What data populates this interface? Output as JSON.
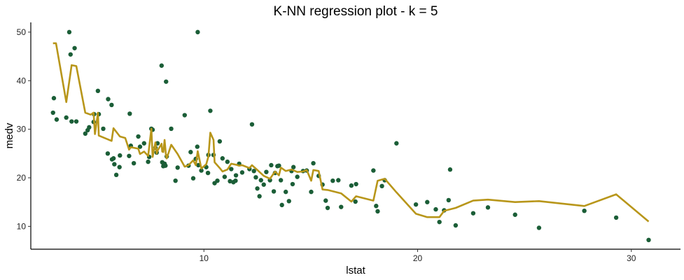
{
  "chart_data": {
    "type": "scatter",
    "title": "K-NN regression plot - k = 5",
    "xlabel": "lstat",
    "ylabel": "medv",
    "xlim": [
      1.9,
      32.3
    ],
    "ylim": [
      5.3,
      52.0
    ],
    "x_ticks": [
      10,
      20,
      30
    ],
    "y_ticks": [
      10,
      20,
      30,
      40,
      50
    ],
    "grid": false,
    "legend": "none",
    "colors": {
      "points": "#1b5e37",
      "line": "#b8961a",
      "axis": "#000000"
    },
    "series": [
      {
        "type": "scatter",
        "points": [
          [
            2.94,
            33.4
          ],
          [
            2.98,
            36.4
          ],
          [
            3.11,
            32.0
          ],
          [
            3.56,
            32.4
          ],
          [
            3.7,
            50.0
          ],
          [
            3.76,
            45.4
          ],
          [
            3.81,
            31.6
          ],
          [
            3.95,
            46.7
          ],
          [
            4.03,
            31.6
          ],
          [
            4.45,
            29.1
          ],
          [
            4.56,
            29.8
          ],
          [
            4.63,
            30.4
          ],
          [
            4.84,
            31.5
          ],
          [
            4.86,
            33.1
          ],
          [
            5.04,
            37.9
          ],
          [
            5.08,
            33.1
          ],
          [
            5.29,
            30.1
          ],
          [
            5.5,
            25.0
          ],
          [
            5.52,
            36.2
          ],
          [
            5.68,
            35.0
          ],
          [
            5.7,
            23.8
          ],
          [
            5.77,
            24.0
          ],
          [
            5.81,
            22.8
          ],
          [
            5.9,
            20.6
          ],
          [
            6.05,
            22.2
          ],
          [
            6.07,
            24.6
          ],
          [
            6.5,
            24.5
          ],
          [
            6.53,
            33.2
          ],
          [
            6.58,
            26.6
          ],
          [
            6.72,
            23.0
          ],
          [
            6.93,
            28.5
          ],
          [
            7.01,
            26.4
          ],
          [
            7.2,
            27.1
          ],
          [
            7.39,
            23.3
          ],
          [
            7.44,
            24.3
          ],
          [
            7.54,
            30.1
          ],
          [
            7.6,
            29.9
          ],
          [
            7.73,
            26.2
          ],
          [
            7.79,
            25.2
          ],
          [
            7.83,
            27.1
          ],
          [
            8.02,
            43.1
          ],
          [
            8.05,
            23.2
          ],
          [
            8.1,
            22.4
          ],
          [
            8.16,
            22.9
          ],
          [
            8.2,
            22.5
          ],
          [
            8.23,
            39.8
          ],
          [
            8.26,
            24.4
          ],
          [
            8.47,
            30.1
          ],
          [
            8.67,
            19.4
          ],
          [
            8.77,
            22.1
          ],
          [
            9.1,
            32.9
          ],
          [
            9.28,
            22.5
          ],
          [
            9.38,
            25.3
          ],
          [
            9.5,
            19.9
          ],
          [
            9.62,
            23.9
          ],
          [
            9.69,
            26.4
          ],
          [
            9.71,
            50.0
          ],
          [
            9.74,
            22.6
          ],
          [
            9.88,
            21.5
          ],
          [
            10.11,
            22.2
          ],
          [
            10.19,
            21.0
          ],
          [
            10.21,
            24.7
          ],
          [
            10.3,
            33.8
          ],
          [
            10.45,
            24.7
          ],
          [
            10.5,
            18.9
          ],
          [
            10.63,
            19.4
          ],
          [
            10.74,
            27.5
          ],
          [
            10.87,
            24.0
          ],
          [
            10.97,
            20.2
          ],
          [
            11.1,
            23.3
          ],
          [
            11.22,
            19.3
          ],
          [
            11.28,
            21.8
          ],
          [
            11.38,
            19.1
          ],
          [
            11.48,
            19.4
          ],
          [
            11.5,
            20.5
          ],
          [
            11.65,
            22.9
          ],
          [
            11.79,
            21.1
          ],
          [
            12.13,
            21.8
          ],
          [
            12.25,
            31.0
          ],
          [
            12.34,
            21.4
          ],
          [
            12.43,
            20.1
          ],
          [
            12.5,
            17.8
          ],
          [
            12.6,
            16.2
          ],
          [
            12.67,
            19.5
          ],
          [
            12.8,
            18.6
          ],
          [
            12.92,
            21.2
          ],
          [
            13.09,
            19.5
          ],
          [
            13.15,
            22.6
          ],
          [
            13.27,
            17.2
          ],
          [
            13.33,
            21.0
          ],
          [
            13.44,
            22.4
          ],
          [
            13.51,
            22.5
          ],
          [
            13.6,
            19.5
          ],
          [
            13.65,
            14.4
          ],
          [
            13.83,
            17.1
          ],
          [
            13.98,
            15.2
          ],
          [
            14.1,
            21.4
          ],
          [
            14.15,
            18.7
          ],
          [
            14.19,
            22.2
          ],
          [
            14.37,
            20.2
          ],
          [
            14.64,
            21.4
          ],
          [
            14.81,
            21.5
          ],
          [
            15.02,
            17.1
          ],
          [
            15.12,
            23.0
          ],
          [
            15.37,
            20.4
          ],
          [
            15.55,
            18.6
          ],
          [
            15.7,
            15.3
          ],
          [
            15.79,
            13.8
          ],
          [
            16.03,
            19.4
          ],
          [
            16.29,
            19.5
          ],
          [
            16.42,
            14.0
          ],
          [
            16.9,
            18.4
          ],
          [
            17.09,
            15.1
          ],
          [
            17.12,
            18.7
          ],
          [
            17.93,
            21.5
          ],
          [
            18.06,
            14.2
          ],
          [
            18.13,
            13.1
          ],
          [
            18.33,
            18.3
          ],
          [
            18.46,
            19.5
          ],
          [
            19.01,
            27.1
          ],
          [
            19.92,
            14.5
          ],
          [
            20.45,
            15.0
          ],
          [
            20.85,
            13.5
          ],
          [
            21.02,
            10.9
          ],
          [
            21.24,
            13.3
          ],
          [
            21.45,
            15.4
          ],
          [
            21.52,
            21.7
          ],
          [
            21.78,
            10.2
          ],
          [
            22.6,
            12.7
          ],
          [
            23.29,
            13.9
          ],
          [
            24.56,
            12.4
          ],
          [
            25.68,
            9.7
          ],
          [
            27.8,
            13.2
          ],
          [
            29.29,
            11.8
          ],
          [
            30.81,
            7.2
          ]
        ]
      },
      {
        "type": "line",
        "points": [
          [
            2.94,
            47.7
          ],
          [
            3.08,
            47.7
          ],
          [
            3.56,
            35.6
          ],
          [
            3.81,
            43.2
          ],
          [
            4.03,
            43.0
          ],
          [
            4.45,
            33.4
          ],
          [
            4.7,
            33.0
          ],
          [
            4.84,
            33.4
          ],
          [
            4.9,
            29.0
          ],
          [
            5.04,
            33.4
          ],
          [
            5.08,
            28.7
          ],
          [
            5.68,
            27.6
          ],
          [
            5.77,
            30.2
          ],
          [
            6.07,
            28.5
          ],
          [
            6.32,
            28.2
          ],
          [
            6.5,
            25.8
          ],
          [
            6.58,
            26.3
          ],
          [
            6.93,
            26.0
          ],
          [
            7.01,
            24.9
          ],
          [
            7.2,
            25.4
          ],
          [
            7.39,
            24.5
          ],
          [
            7.54,
            30.1
          ],
          [
            7.6,
            24.3
          ],
          [
            7.73,
            27.3
          ],
          [
            7.79,
            25.0
          ],
          [
            7.83,
            25.6
          ],
          [
            8.02,
            27.0
          ],
          [
            8.05,
            25.4
          ],
          [
            8.1,
            25.3
          ],
          [
            8.16,
            27.8
          ],
          [
            8.23,
            24.4
          ],
          [
            8.26,
            24.0
          ],
          [
            8.47,
            26.8
          ],
          [
            8.77,
            24.9
          ],
          [
            9.1,
            22.3
          ],
          [
            9.28,
            22.6
          ],
          [
            9.5,
            23.6
          ],
          [
            9.62,
            22.6
          ],
          [
            9.71,
            25.5
          ],
          [
            9.88,
            21.9
          ],
          [
            10.11,
            22.8
          ],
          [
            10.21,
            24.4
          ],
          [
            10.3,
            29.3
          ],
          [
            10.45,
            27.8
          ],
          [
            10.5,
            23.2
          ],
          [
            10.74,
            22.0
          ],
          [
            10.87,
            21.3
          ],
          [
            11.1,
            21.7
          ],
          [
            11.28,
            22.9
          ],
          [
            11.5,
            22.7
          ],
          [
            11.65,
            22.5
          ],
          [
            11.79,
            22.6
          ],
          [
            12.13,
            22.0
          ],
          [
            12.25,
            22.6
          ],
          [
            12.5,
            21.6
          ],
          [
            12.8,
            20.4
          ],
          [
            13.09,
            19.8
          ],
          [
            13.33,
            21.3
          ],
          [
            13.51,
            20.5
          ],
          [
            13.6,
            22.1
          ],
          [
            13.83,
            21.4
          ],
          [
            14.1,
            21.7
          ],
          [
            14.37,
            21.2
          ],
          [
            14.64,
            21.3
          ],
          [
            14.81,
            21.6
          ],
          [
            15.02,
            19.4
          ],
          [
            15.12,
            21.6
          ],
          [
            15.37,
            21.4
          ],
          [
            15.55,
            17.6
          ],
          [
            15.79,
            17.5
          ],
          [
            16.42,
            16.8
          ],
          [
            16.9,
            15.1
          ],
          [
            17.12,
            16.2
          ],
          [
            17.93,
            15.3
          ],
          [
            18.13,
            19.4
          ],
          [
            18.46,
            19.8
          ],
          [
            19.01,
            17.0
          ],
          [
            19.92,
            12.6
          ],
          [
            20.45,
            11.9
          ],
          [
            21.02,
            11.9
          ],
          [
            21.24,
            13.2
          ],
          [
            21.78,
            13.8
          ],
          [
            22.6,
            15.3
          ],
          [
            23.29,
            15.5
          ],
          [
            24.56,
            15.0
          ],
          [
            25.68,
            15.2
          ],
          [
            27.8,
            14.2
          ],
          [
            29.29,
            16.6
          ],
          [
            30.81,
            11.0
          ]
        ]
      }
    ]
  }
}
